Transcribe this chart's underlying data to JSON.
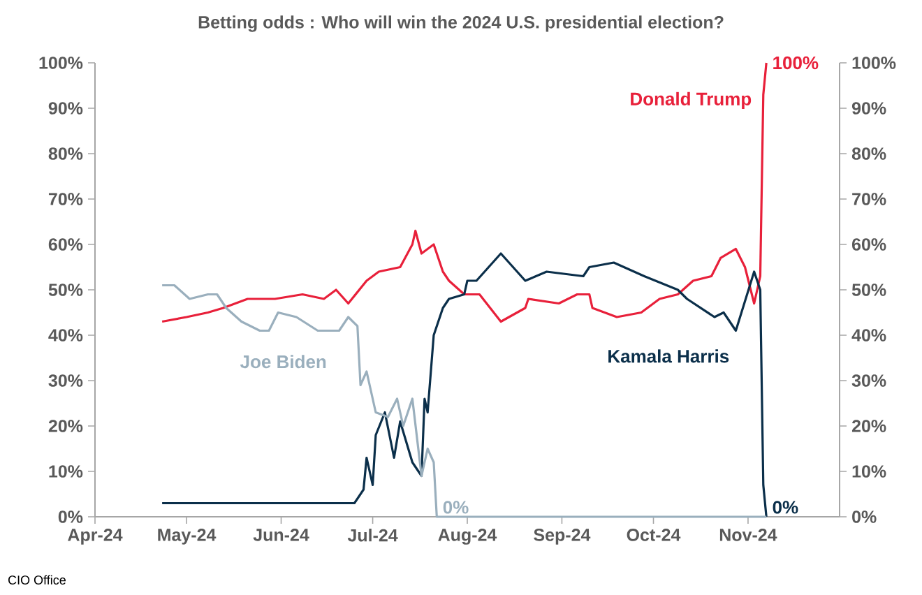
{
  "chart_data": {
    "type": "line",
    "title": "Betting odds : Who will win the 2024 U.S. presidential election?",
    "xlim": [
      "2024-04-01",
      "2024-12-01"
    ],
    "xticks": [
      {
        "value": "2024-04-01",
        "label": "Apr-24"
      },
      {
        "value": "2024-05-01",
        "label": "May-24"
      },
      {
        "value": "2024-06-01",
        "label": "Jun-24"
      },
      {
        "value": "2024-07-01",
        "label": "Jul-24"
      },
      {
        "value": "2024-08-01",
        "label": "Aug-24"
      },
      {
        "value": "2024-09-01",
        "label": "Sep-24"
      },
      {
        "value": "2024-10-01",
        "label": "Oct-24"
      },
      {
        "value": "2024-11-01",
        "label": "Nov-24"
      }
    ],
    "ylim": [
      0,
      100
    ],
    "yticks": [
      {
        "value": 0,
        "label": "0%"
      },
      {
        "value": 10,
        "label": "10%"
      },
      {
        "value": 20,
        "label": "20%"
      },
      {
        "value": 30,
        "label": "30%"
      },
      {
        "value": 40,
        "label": "40%"
      },
      {
        "value": 50,
        "label": "50%"
      },
      {
        "value": 60,
        "label": "60%"
      },
      {
        "value": 70,
        "label": "70%"
      },
      {
        "value": 80,
        "label": "80%"
      },
      {
        "value": 90,
        "label": "90%"
      },
      {
        "value": 100,
        "label": "100%"
      }
    ],
    "y2lim": [
      0,
      100
    ],
    "y2ticks": [
      {
        "value": 0,
        "label": "0%"
      },
      {
        "value": 10,
        "label": "10%"
      },
      {
        "value": 20,
        "label": "20%"
      },
      {
        "value": 30,
        "label": "30%"
      },
      {
        "value": 40,
        "label": "40%"
      },
      {
        "value": 50,
        "label": "50%"
      },
      {
        "value": 60,
        "label": "60%"
      },
      {
        "value": 70,
        "label": "70%"
      },
      {
        "value": 80,
        "label": "80%"
      },
      {
        "value": 90,
        "label": "90%"
      },
      {
        "value": 100,
        "label": "100%"
      }
    ],
    "series": [
      {
        "name": "Donald Trump",
        "color": "#e8203a",
        "x": [
          "2024-04-23",
          "2024-05-01",
          "2024-05-08",
          "2024-05-13",
          "2024-05-21",
          "2024-05-30",
          "2024-06-08",
          "2024-06-15",
          "2024-06-19",
          "2024-06-23",
          "2024-06-29",
          "2024-07-03",
          "2024-07-10",
          "2024-07-14",
          "2024-07-15",
          "2024-07-17",
          "2024-07-21",
          "2024-07-24",
          "2024-07-26",
          "2024-07-31",
          "2024-08-05",
          "2024-08-12",
          "2024-08-20",
          "2024-08-21",
          "2024-08-31",
          "2024-09-06",
          "2024-09-10",
          "2024-09-11",
          "2024-09-19",
          "2024-09-27",
          "2024-10-03",
          "2024-10-09",
          "2024-10-14",
          "2024-10-20",
          "2024-10-23",
          "2024-10-28",
          "2024-10-31",
          "2024-11-03",
          "2024-11-05",
          "2024-11-06",
          "2024-11-07"
        ],
        "values": [
          43,
          44,
          45,
          46,
          48,
          48,
          49,
          48,
          50,
          47,
          52,
          54,
          55,
          60,
          63,
          58,
          60,
          54,
          52,
          49,
          49,
          43,
          46,
          48,
          47,
          49,
          49,
          46,
          44,
          45,
          48,
          49,
          52,
          53,
          57,
          59,
          55,
          47,
          53,
          93,
          100
        ]
      },
      {
        "name": "Kamala Harris",
        "color": "#0b2f4a",
        "x": [
          "2024-04-23",
          "2024-06-25",
          "2024-06-28",
          "2024-06-29",
          "2024-07-01",
          "2024-07-02",
          "2024-07-05",
          "2024-07-08",
          "2024-07-10",
          "2024-07-14",
          "2024-07-17",
          "2024-07-18",
          "2024-07-19",
          "2024-07-21",
          "2024-07-24",
          "2024-07-26",
          "2024-07-31",
          "2024-08-01",
          "2024-08-04",
          "2024-08-12",
          "2024-08-20",
          "2024-08-27",
          "2024-09-08",
          "2024-09-10",
          "2024-09-18",
          "2024-09-28",
          "2024-10-09",
          "2024-10-12",
          "2024-10-21",
          "2024-10-24",
          "2024-10-28",
          "2024-11-03",
          "2024-11-05",
          "2024-11-06",
          "2024-11-07"
        ],
        "values": [
          3,
          3,
          6,
          13,
          7,
          18,
          23,
          13,
          21,
          12,
          9,
          26,
          23,
          40,
          46,
          48,
          49,
          52,
          52,
          58,
          52,
          54,
          53,
          55,
          56,
          53,
          50,
          48,
          44,
          45,
          41,
          54,
          50,
          7,
          0
        ]
      },
      {
        "name": "Joe Biden",
        "color": "#9aafbd",
        "x": [
          "2024-04-23",
          "2024-04-27",
          "2024-05-02",
          "2024-05-08",
          "2024-05-11",
          "2024-05-14",
          "2024-05-19",
          "2024-05-25",
          "2024-05-28",
          "2024-05-31",
          "2024-06-06",
          "2024-06-13",
          "2024-06-20",
          "2024-06-23",
          "2024-06-26",
          "2024-06-27",
          "2024-06-29",
          "2024-07-02",
          "2024-07-06",
          "2024-07-09",
          "2024-07-11",
          "2024-07-14",
          "2024-07-17",
          "2024-07-19",
          "2024-07-21",
          "2024-07-22",
          "2024-11-07"
        ],
        "values": [
          51,
          51,
          48,
          49,
          49,
          46,
          43,
          41,
          41,
          45,
          44,
          41,
          41,
          44,
          42,
          29,
          32,
          23,
          22,
          26,
          20,
          26,
          9,
          15,
          12,
          0,
          0
        ]
      }
    ],
    "annotations": [
      {
        "text": "100%",
        "x": "2024-11-07",
        "y": 100
      },
      {
        "text": "0%",
        "x": "2024-07-22",
        "y": 0
      },
      {
        "text": "0%",
        "x": "2024-11-07",
        "y": 0
      },
      "CIO Office"
    ]
  }
}
